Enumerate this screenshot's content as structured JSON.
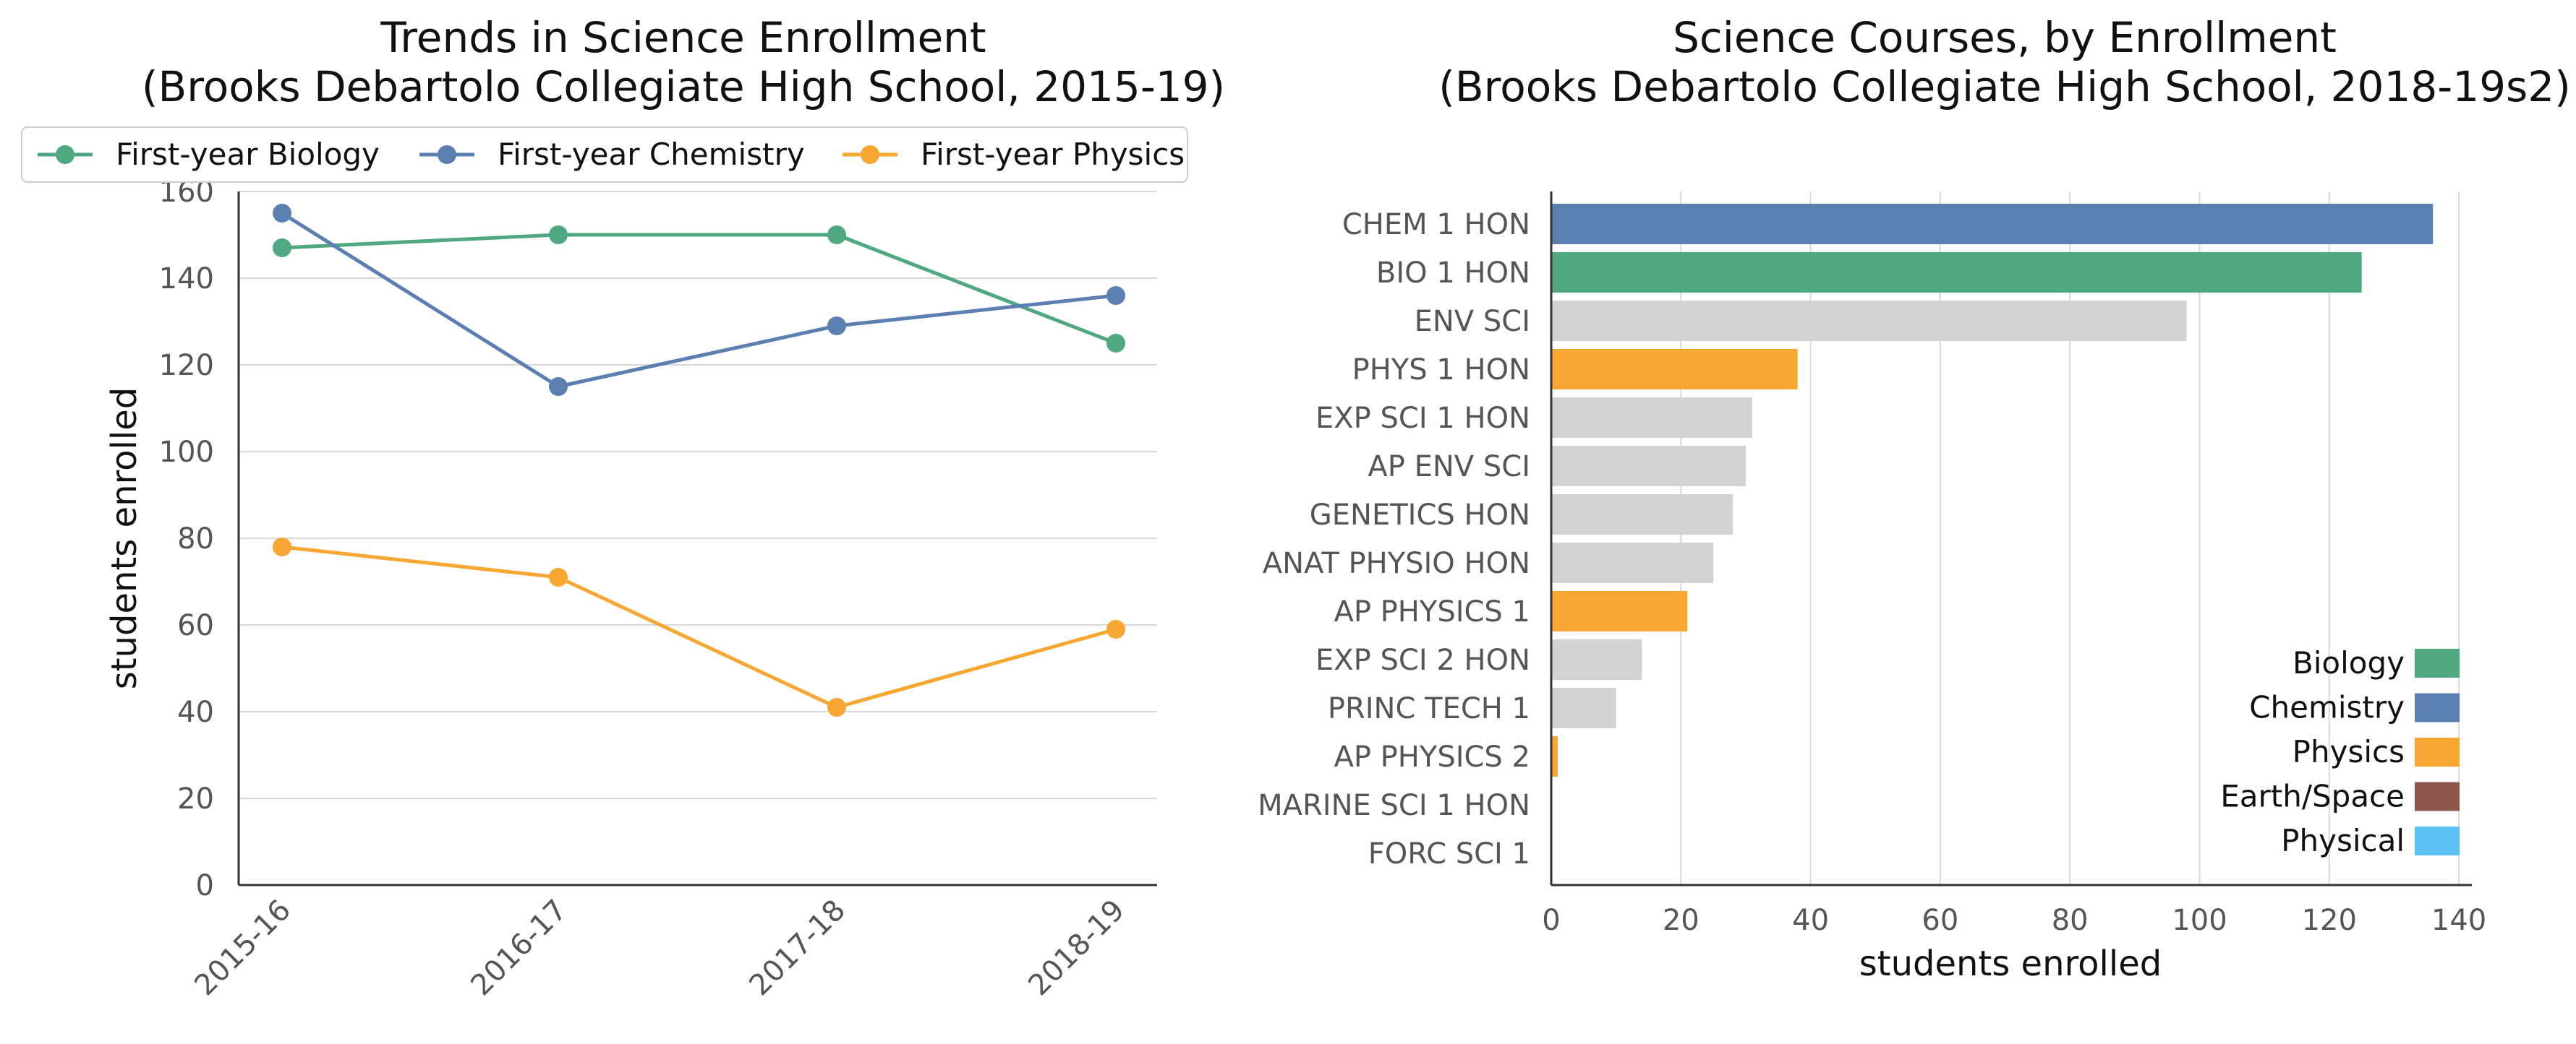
{
  "chart_data": [
    {
      "type": "line",
      "title": "Trends in Science Enrollment",
      "subtitle": "(Brooks Debartolo Collegiate High School, 2015-19)",
      "ylabel": "students enrolled",
      "xlabel": "",
      "categories": [
        "2015-16",
        "2016-17",
        "2017-18",
        "2018-19"
      ],
      "ylim": [
        0,
        160
      ],
      "yticks": [
        0,
        20,
        40,
        60,
        80,
        100,
        120,
        140,
        160
      ],
      "grid": "horizontal",
      "legend": "top",
      "series": [
        {
          "name": "First-year Biology",
          "color": "#4fa87f",
          "values": [
            147,
            150,
            150,
            125
          ]
        },
        {
          "name": "First-year Chemistry",
          "color": "#5b7fb0",
          "values": [
            155,
            115,
            129,
            136
          ]
        },
        {
          "name": "First-year Physics",
          "color": "#f8a832",
          "values": [
            78,
            71,
            41,
            59
          ]
        }
      ]
    },
    {
      "type": "bar",
      "orientation": "horizontal",
      "title": "Science Courses, by Enrollment",
      "subtitle": "(Brooks Debartolo Collegiate High School, 2018-19s2)",
      "xlabel": "students enrolled",
      "ylabel": "",
      "xlim": [
        0,
        142
      ],
      "xticks": [
        0,
        20,
        40,
        60,
        80,
        100,
        120,
        140
      ],
      "grid": "vertical",
      "legend": "bottom-right",
      "categories": [
        "CHEM 1 HON",
        "BIO 1 HON",
        "ENV SCI",
        "PHYS 1 HON",
        "EXP SCI 1 HON",
        "AP ENV SCI",
        "GENETICS HON",
        "ANAT PHYSIO HON",
        "AP PHYSICS 1",
        "EXP SCI 2 HON",
        "PRINC TECH 1",
        "AP PHYSICS 2",
        "MARINE SCI 1 HON",
        "FORC SCI 1"
      ],
      "values": [
        136,
        125,
        98,
        38,
        31,
        30,
        28,
        25,
        21,
        14,
        10,
        1,
        0,
        0
      ],
      "groups": [
        "Chemistry",
        "Biology",
        "Other",
        "Physics",
        "Other",
        "Other",
        "Other",
        "Other",
        "Physics",
        "Other",
        "Other",
        "Physics",
        "Other",
        "Other"
      ],
      "legend_entries": [
        {
          "name": "Biology",
          "color": "#4fa87f"
        },
        {
          "name": "Chemistry",
          "color": "#5b7fb0"
        },
        {
          "name": "Physics",
          "color": "#f8a832"
        },
        {
          "name": "Earth/Space",
          "color": "#8c564b"
        },
        {
          "name": "Physical",
          "color": "#5bc0f2"
        }
      ],
      "colors": {
        "Biology": "#4fa87f",
        "Chemistry": "#5b7fb0",
        "Physics": "#f8a832",
        "Earth/Space": "#8c564b",
        "Physical": "#5bc0f2",
        "Other": "#d3d3d3"
      }
    }
  ]
}
